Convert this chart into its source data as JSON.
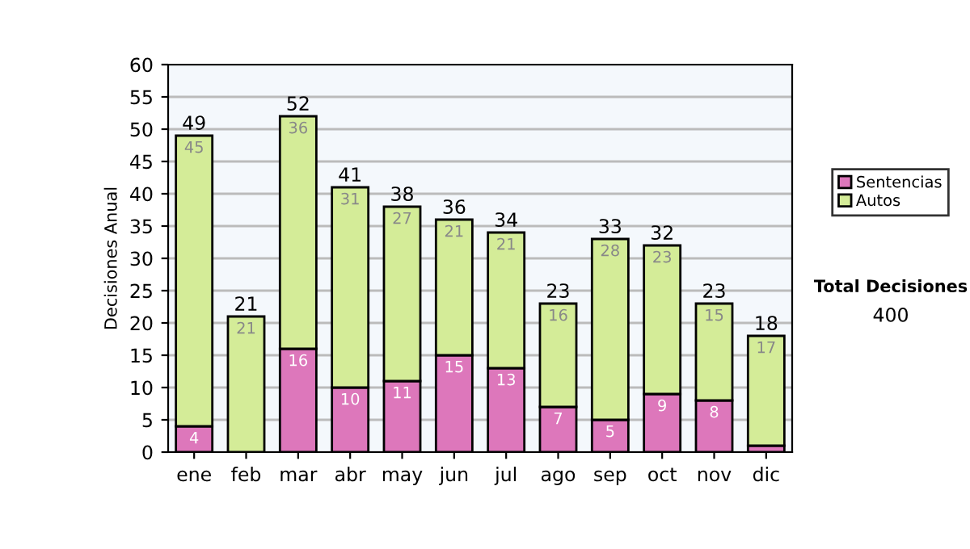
{
  "chart_data": {
    "type": "bar",
    "stacked": true,
    "ylabel": "Decisiones Anual",
    "categories": [
      "ene",
      "feb",
      "mar",
      "abr",
      "may",
      "jun",
      "jul",
      "ago",
      "sep",
      "oct",
      "nov",
      "dic"
    ],
    "series": [
      {
        "name": "Sentencias",
        "color": "#dd77bb",
        "values": [
          4,
          0,
          16,
          10,
          11,
          15,
          13,
          7,
          5,
          9,
          8,
          1
        ],
        "value_labels": [
          "4",
          null,
          "16",
          "10",
          "11",
          "15",
          "13",
          "7",
          "5",
          "9",
          "8",
          null
        ]
      },
      {
        "name": "Autos",
        "color": "#d4ec98",
        "values": [
          45,
          21,
          36,
          31,
          27,
          21,
          21,
          16,
          28,
          23,
          15,
          17
        ],
        "value_labels": [
          "45",
          "21",
          "36",
          "31",
          "27",
          "21",
          "21",
          "16",
          "28",
          "23",
          "15",
          "17"
        ]
      }
    ],
    "totals": [
      "49",
      "21",
      "52",
      "41",
      "38",
      "36",
      "34",
      "23",
      "33",
      "32",
      "23",
      "18"
    ],
    "ylim": [
      0,
      60
    ],
    "yticks": [
      0,
      5,
      10,
      15,
      20,
      25,
      30,
      35,
      40,
      45,
      50,
      55,
      60
    ],
    "grid": "y",
    "legend": "right",
    "annotations": [
      "Total Decisiones",
      "400"
    ]
  }
}
